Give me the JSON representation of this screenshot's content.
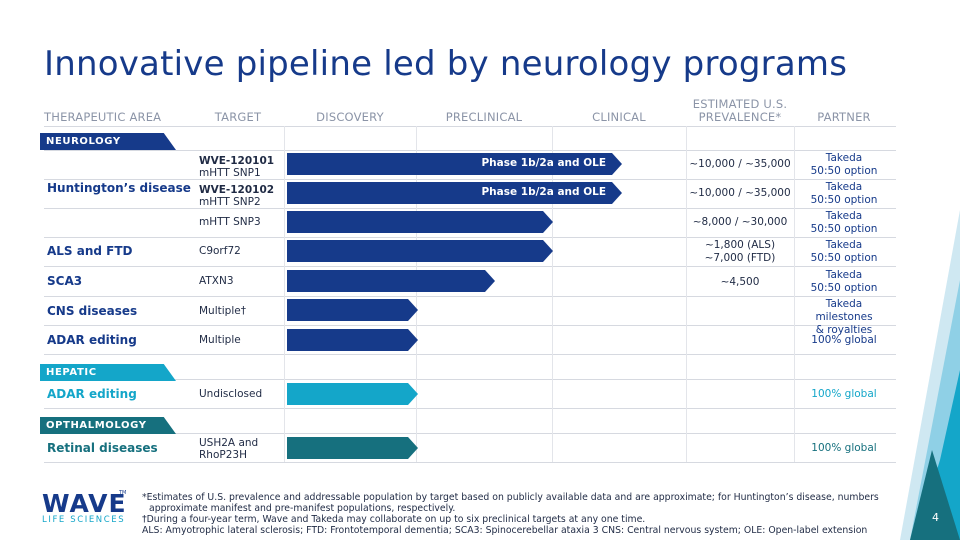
{
  "title": "Innovative pipeline led by neurology programs",
  "headers": {
    "area": "THERAPEUTIC AREA",
    "target": "TARGET",
    "discovery": "DISCOVERY",
    "preclinical": "PRECLINICAL",
    "clinical": "CLINICAL",
    "prevalence_line1": "ESTIMATED U.S.",
    "prevalence_line2": "PREVALENCE*",
    "partner": "PARTNER"
  },
  "sections": {
    "neurology": "NEUROLOGY",
    "hepatic": "HEPATIC",
    "ophthalmology": "OPTHALMOLOGY"
  },
  "rows": {
    "hd_area": "Huntington’s disease",
    "hd1": {
      "target_bold": "WVE-120101",
      "target_sub": "mHTT SNP1",
      "bar_label": "Phase 1b/2a and OLE",
      "prevalence": "~10,000 / ~35,000",
      "partner_1": "Takeda",
      "partner_2": "50:50 option"
    },
    "hd2": {
      "target_bold": "WVE-120102",
      "target_sub": "mHTT SNP2",
      "bar_label": "Phase 1b/2a and OLE",
      "prevalence": "~10,000 / ~35,000",
      "partner_1": "Takeda",
      "partner_2": "50:50 option"
    },
    "hd3": {
      "target": "mHTT SNP3",
      "prevalence": "~8,000 / ~30,000",
      "partner_1": "Takeda",
      "partner_2": "50:50 option"
    },
    "als": {
      "area": "ALS and FTD",
      "target": "C9orf72",
      "prevalence_1": "~1,800 (ALS)",
      "prevalence_2": "~7,000 (FTD)",
      "partner_1": "Takeda",
      "partner_2": "50:50 option"
    },
    "sca3": {
      "area": "SCA3",
      "target": "ATXN3",
      "prevalence": "~4,500",
      "partner_1": "Takeda",
      "partner_2": "50:50 option"
    },
    "cns": {
      "area": "CNS diseases",
      "target": "Multiple†",
      "partner_1": "Takeda milestones",
      "partner_2": "& royalties"
    },
    "adar_neuro": {
      "area": "ADAR editing",
      "target": "Multiple",
      "partner": "100% global"
    },
    "adar_hep": {
      "area": "ADAR editing",
      "target": "Undisclosed",
      "partner": "100% global"
    },
    "retinal": {
      "area": "Retinal diseases",
      "target_1": "USH2A and",
      "target_2": "RhoP23H",
      "partner": "100% global"
    }
  },
  "footnotes": {
    "line1": "*Estimates of U.S. prevalence and addressable population by target based on publicly available data and are approximate; for Huntington’s disease, numbers",
    "line2": "approximate manifest and pre-manifest populations, respectively.",
    "line3": "†During a four-year term, Wave and Takeda may collaborate on up to six preclinical targets at any one time.",
    "line4": "ALS: Amyotrophic lateral sclerosis; FTD: Frontotemporal dementia; SCA3: Spinocerebellar ataxia 3 CNS: Central nervous system; OLE: Open-label extension"
  },
  "logo": {
    "word": "WAVE",
    "tm": "TM",
    "sub": "LIFE SCIENCES"
  },
  "page_number": "4",
  "colors": {
    "navy": "#163a8a",
    "cyan": "#14a6c9",
    "teal": "#16707e"
  }
}
